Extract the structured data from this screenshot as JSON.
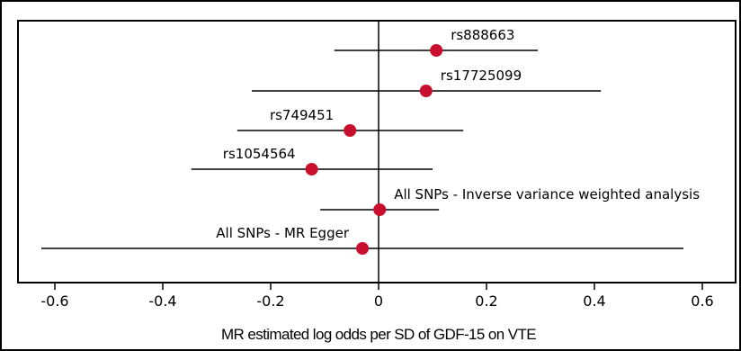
{
  "chart_data": {
    "type": "scatter",
    "title": "",
    "xlabel": "MR estimated log odds per SD of GDF-15 on VTE",
    "ylabel": "",
    "xlim": [
      -0.65,
      0.63
    ],
    "xticks": [
      -0.6,
      -0.4,
      -0.2,
      0,
      0.2,
      0.4,
      0.6
    ],
    "xtick_labels": [
      "-0.6",
      "-0.4",
      "-0.2",
      "0",
      "0.2",
      "0.4",
      "0.6"
    ],
    "grid": false,
    "legend": "none",
    "colors": {
      "point": "#c8102e",
      "line": "#000000"
    },
    "series": [
      {
        "label": "rs888663",
        "estimate": 0.107,
        "ci_low": -0.082,
        "ci_high": 0.295
      },
      {
        "label": "rs17725099",
        "estimate": 0.088,
        "ci_low": -0.235,
        "ci_high": 0.412
      },
      {
        "label": "rs749451",
        "estimate": -0.053,
        "ci_low": -0.262,
        "ci_high": 0.157
      },
      {
        "label": "rs1054564",
        "estimate": -0.124,
        "ci_low": -0.347,
        "ci_high": 0.1
      },
      {
        "label": "All SNPs - Inverse variance weighted analysis",
        "estimate": 0.002,
        "ci_low": -0.108,
        "ci_high": 0.112
      },
      {
        "label": "All SNPs - MR Egger",
        "estimate": -0.03,
        "ci_low": -0.625,
        "ci_high": 0.565
      }
    ]
  }
}
